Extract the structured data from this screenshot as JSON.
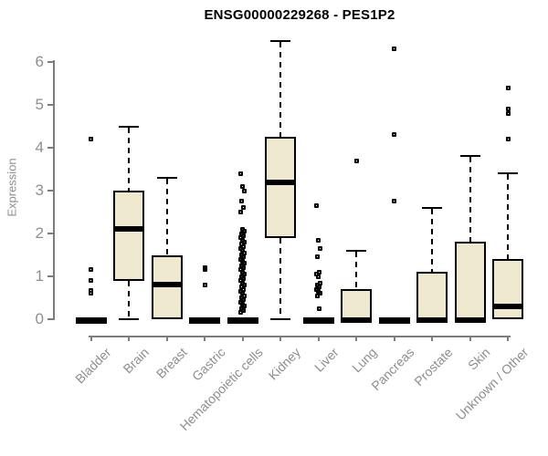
{
  "chart_data": {
    "type": "boxplot",
    "title": "ENSG00000229268 - PES1P2",
    "xlabel": "",
    "ylabel": "Expression",
    "ylim": [
      0,
      6.5
    ],
    "yticks": [
      0,
      1,
      2,
      3,
      4,
      5,
      6
    ],
    "grid": false,
    "legend": "none",
    "categories": [
      "Bladder",
      "Brain",
      "Breast",
      "Gastric",
      "Hematopoietic cells",
      "Kidney",
      "Liver",
      "Lung",
      "Pancreas",
      "Prostate",
      "Skin",
      "Unknown / Other"
    ],
    "series": [
      {
        "category": "Bladder",
        "q1": 0,
        "median": 0,
        "q3": 0,
        "whisker_low": 0,
        "whisker_high": 0,
        "outliers": [
          4.2,
          1.15,
          0.9,
          0.68,
          0.6
        ]
      },
      {
        "category": "Brain",
        "q1": 0.9,
        "median": 2.1,
        "q3": 3.0,
        "whisker_low": 0,
        "whisker_high": 4.5,
        "outliers": []
      },
      {
        "category": "Breast",
        "q1": 0,
        "median": 0.8,
        "q3": 1.5,
        "whisker_low": 0,
        "whisker_high": 3.3,
        "outliers": []
      },
      {
        "category": "Gastric",
        "q1": 0,
        "median": 0,
        "q3": 0,
        "whisker_low": 0,
        "whisker_high": 0,
        "outliers": [
          1.2,
          1.15,
          0.8
        ]
      },
      {
        "category": "Hematopoietic cells",
        "q1": 0,
        "median": 0,
        "q3": 0,
        "whisker_low": 0,
        "whisker_high": 0,
        "outliers": [
          3.4,
          3.1,
          3.0,
          2.75,
          2.6,
          2.5,
          2.1,
          2.05,
          2.0,
          1.95,
          1.9,
          1.85,
          1.8,
          1.75,
          1.7,
          1.65,
          1.6,
          1.55,
          1.5,
          1.45,
          1.4,
          1.35,
          1.3,
          1.25,
          1.2,
          1.15,
          1.1,
          1.05,
          1.0,
          0.95,
          0.9,
          0.85,
          0.8,
          0.75,
          0.7,
          0.65,
          0.6,
          0.55,
          0.5,
          0.45,
          0.4,
          0.35,
          0.3,
          0.25,
          0.2,
          0.15
        ]
      },
      {
        "category": "Kidney",
        "q1": 1.9,
        "median": 3.2,
        "q3": 4.25,
        "whisker_low": 0,
        "whisker_high": 6.5,
        "outliers": []
      },
      {
        "category": "Liver",
        "q1": 0,
        "median": 0,
        "q3": 0,
        "whisker_low": 0,
        "whisker_high": 0,
        "outliers": [
          2.65,
          1.85,
          1.65,
          1.45,
          1.1,
          1.05,
          1.0,
          0.85,
          0.8,
          0.75,
          0.7,
          0.65,
          0.6,
          0.55,
          0.25
        ]
      },
      {
        "category": "Lung",
        "q1": 0,
        "median": 0,
        "q3": 0.7,
        "whisker_low": 0,
        "whisker_high": 1.6,
        "outliers": [
          3.7
        ]
      },
      {
        "category": "Pancreas",
        "q1": 0,
        "median": 0,
        "q3": 0,
        "whisker_low": 0,
        "whisker_high": 0,
        "outliers": [
          6.3,
          4.3,
          2.75
        ]
      },
      {
        "category": "Prostate",
        "q1": 0,
        "median": 0,
        "q3": 1.1,
        "whisker_low": 0,
        "whisker_high": 2.6,
        "outliers": []
      },
      {
        "category": "Skin",
        "q1": 0,
        "median": 0,
        "q3": 1.8,
        "whisker_low": 0,
        "whisker_high": 3.8,
        "outliers": []
      },
      {
        "category": "Unknown / Other",
        "q1": 0,
        "median": 0.3,
        "q3": 1.4,
        "whisker_low": 0,
        "whisker_high": 3.4,
        "outliers": [
          5.4,
          4.9,
          4.8,
          4.2
        ]
      }
    ],
    "colors": {
      "box_fill": "#EDE8CE",
      "box_border": "#000000",
      "whisker": "#000000",
      "outlier": "#000000",
      "axis_line": "#7D7D7D",
      "tick_label": "#8E8E8E",
      "title": "#000000",
      "background": "#FFFFFF"
    }
  }
}
